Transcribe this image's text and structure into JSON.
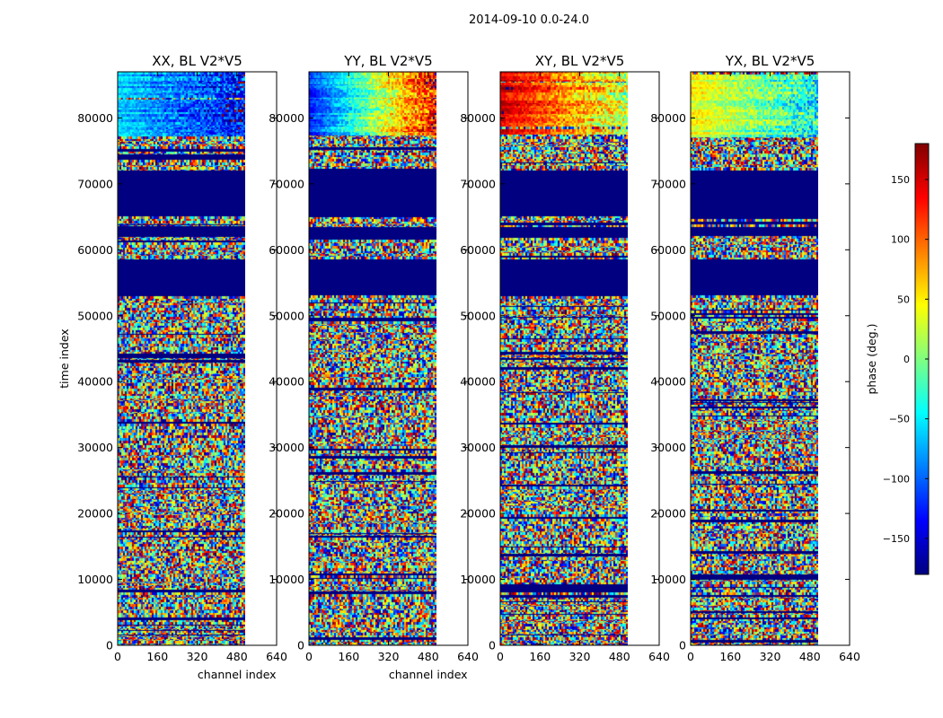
{
  "suptitle": "2014-09-10 0.0-24.0",
  "chart_data": [
    {
      "type": "heatmap",
      "title": "XX, BL V2*V5",
      "xlabel": "channel index",
      "ylabel": "time index",
      "xlim": [
        0,
        640
      ],
      "ylim": [
        0,
        87000
      ],
      "xticks": [
        "0",
        "160",
        "320",
        "480",
        "640"
      ],
      "yticks": [
        "0",
        "10000",
        "20000",
        "30000",
        "40000",
        "50000",
        "60000",
        "70000",
        "80000"
      ],
      "data_channels": [
        0,
        512
      ],
      "flagged_time_ranges": [
        [
          53000,
          58500
        ],
        [
          62000,
          63500
        ],
        [
          65000,
          72000
        ]
      ],
      "smooth_time_range": [
        77000,
        87000
      ],
      "smooth_phase_start": -60,
      "smooth_phase_gradient": -70
    },
    {
      "type": "heatmap",
      "title": "YY, BL V2*V5",
      "xlabel": "channel index",
      "ylabel": "",
      "xlim": [
        0,
        640
      ],
      "ylim": [
        0,
        87000
      ],
      "xticks": [
        "0",
        "160",
        "320",
        "480",
        "640"
      ],
      "yticks": [
        "0",
        "10000",
        "20000",
        "30000",
        "40000",
        "50000",
        "60000",
        "70000",
        "80000"
      ],
      "data_channels": [
        0,
        512
      ],
      "flagged_time_ranges": [
        [
          53000,
          58500
        ],
        [
          62000,
          63500
        ],
        [
          65000,
          72000
        ]
      ],
      "smooth_time_range": [
        77000,
        87000
      ],
      "smooth_phase_start": -120,
      "smooth_phase_gradient": 260
    },
    {
      "type": "heatmap",
      "title": "XY, BL V2*V5",
      "xlabel": "",
      "ylabel": "",
      "xlim": [
        0,
        640
      ],
      "ylim": [
        0,
        87000
      ],
      "xticks": [
        "0",
        "160",
        "320",
        "480",
        "640"
      ],
      "yticks": [
        "0",
        "10000",
        "20000",
        "30000",
        "40000",
        "50000",
        "60000",
        "70000",
        "80000"
      ],
      "data_channels": [
        0,
        512
      ],
      "flagged_time_ranges": [
        [
          53000,
          58500
        ],
        [
          62000,
          63500
        ],
        [
          65000,
          72000
        ]
      ],
      "smooth_time_range": [
        77000,
        87000
      ],
      "smooth_phase_start": 150,
      "smooth_phase_gradient": -130
    },
    {
      "type": "heatmap",
      "title": "YX, BL V2*V5",
      "xlabel": "",
      "ylabel": "",
      "xlim": [
        0,
        640
      ],
      "ylim": [
        0,
        87000
      ],
      "xticks": [
        "0",
        "160",
        "320",
        "480",
        "640"
      ],
      "yticks": [
        "0",
        "10000",
        "20000",
        "30000",
        "40000",
        "50000",
        "60000",
        "70000",
        "80000"
      ],
      "data_channels": [
        0,
        512
      ],
      "flagged_time_ranges": [
        [
          53000,
          58500
        ],
        [
          62000,
          63500
        ],
        [
          65000,
          72000
        ]
      ],
      "smooth_time_range": [
        77000,
        87000
      ],
      "smooth_phase_start": 40,
      "smooth_phase_gradient": -90
    }
  ],
  "colorbar": {
    "label": "phase (deg.)",
    "colormap": "jet",
    "range": [
      -180,
      180
    ],
    "ticks": [
      -150,
      -100,
      -50,
      0,
      50,
      100,
      150
    ],
    "tick_labels": [
      "−150",
      "−100",
      "−50",
      "0",
      "50",
      "100",
      "150"
    ]
  }
}
